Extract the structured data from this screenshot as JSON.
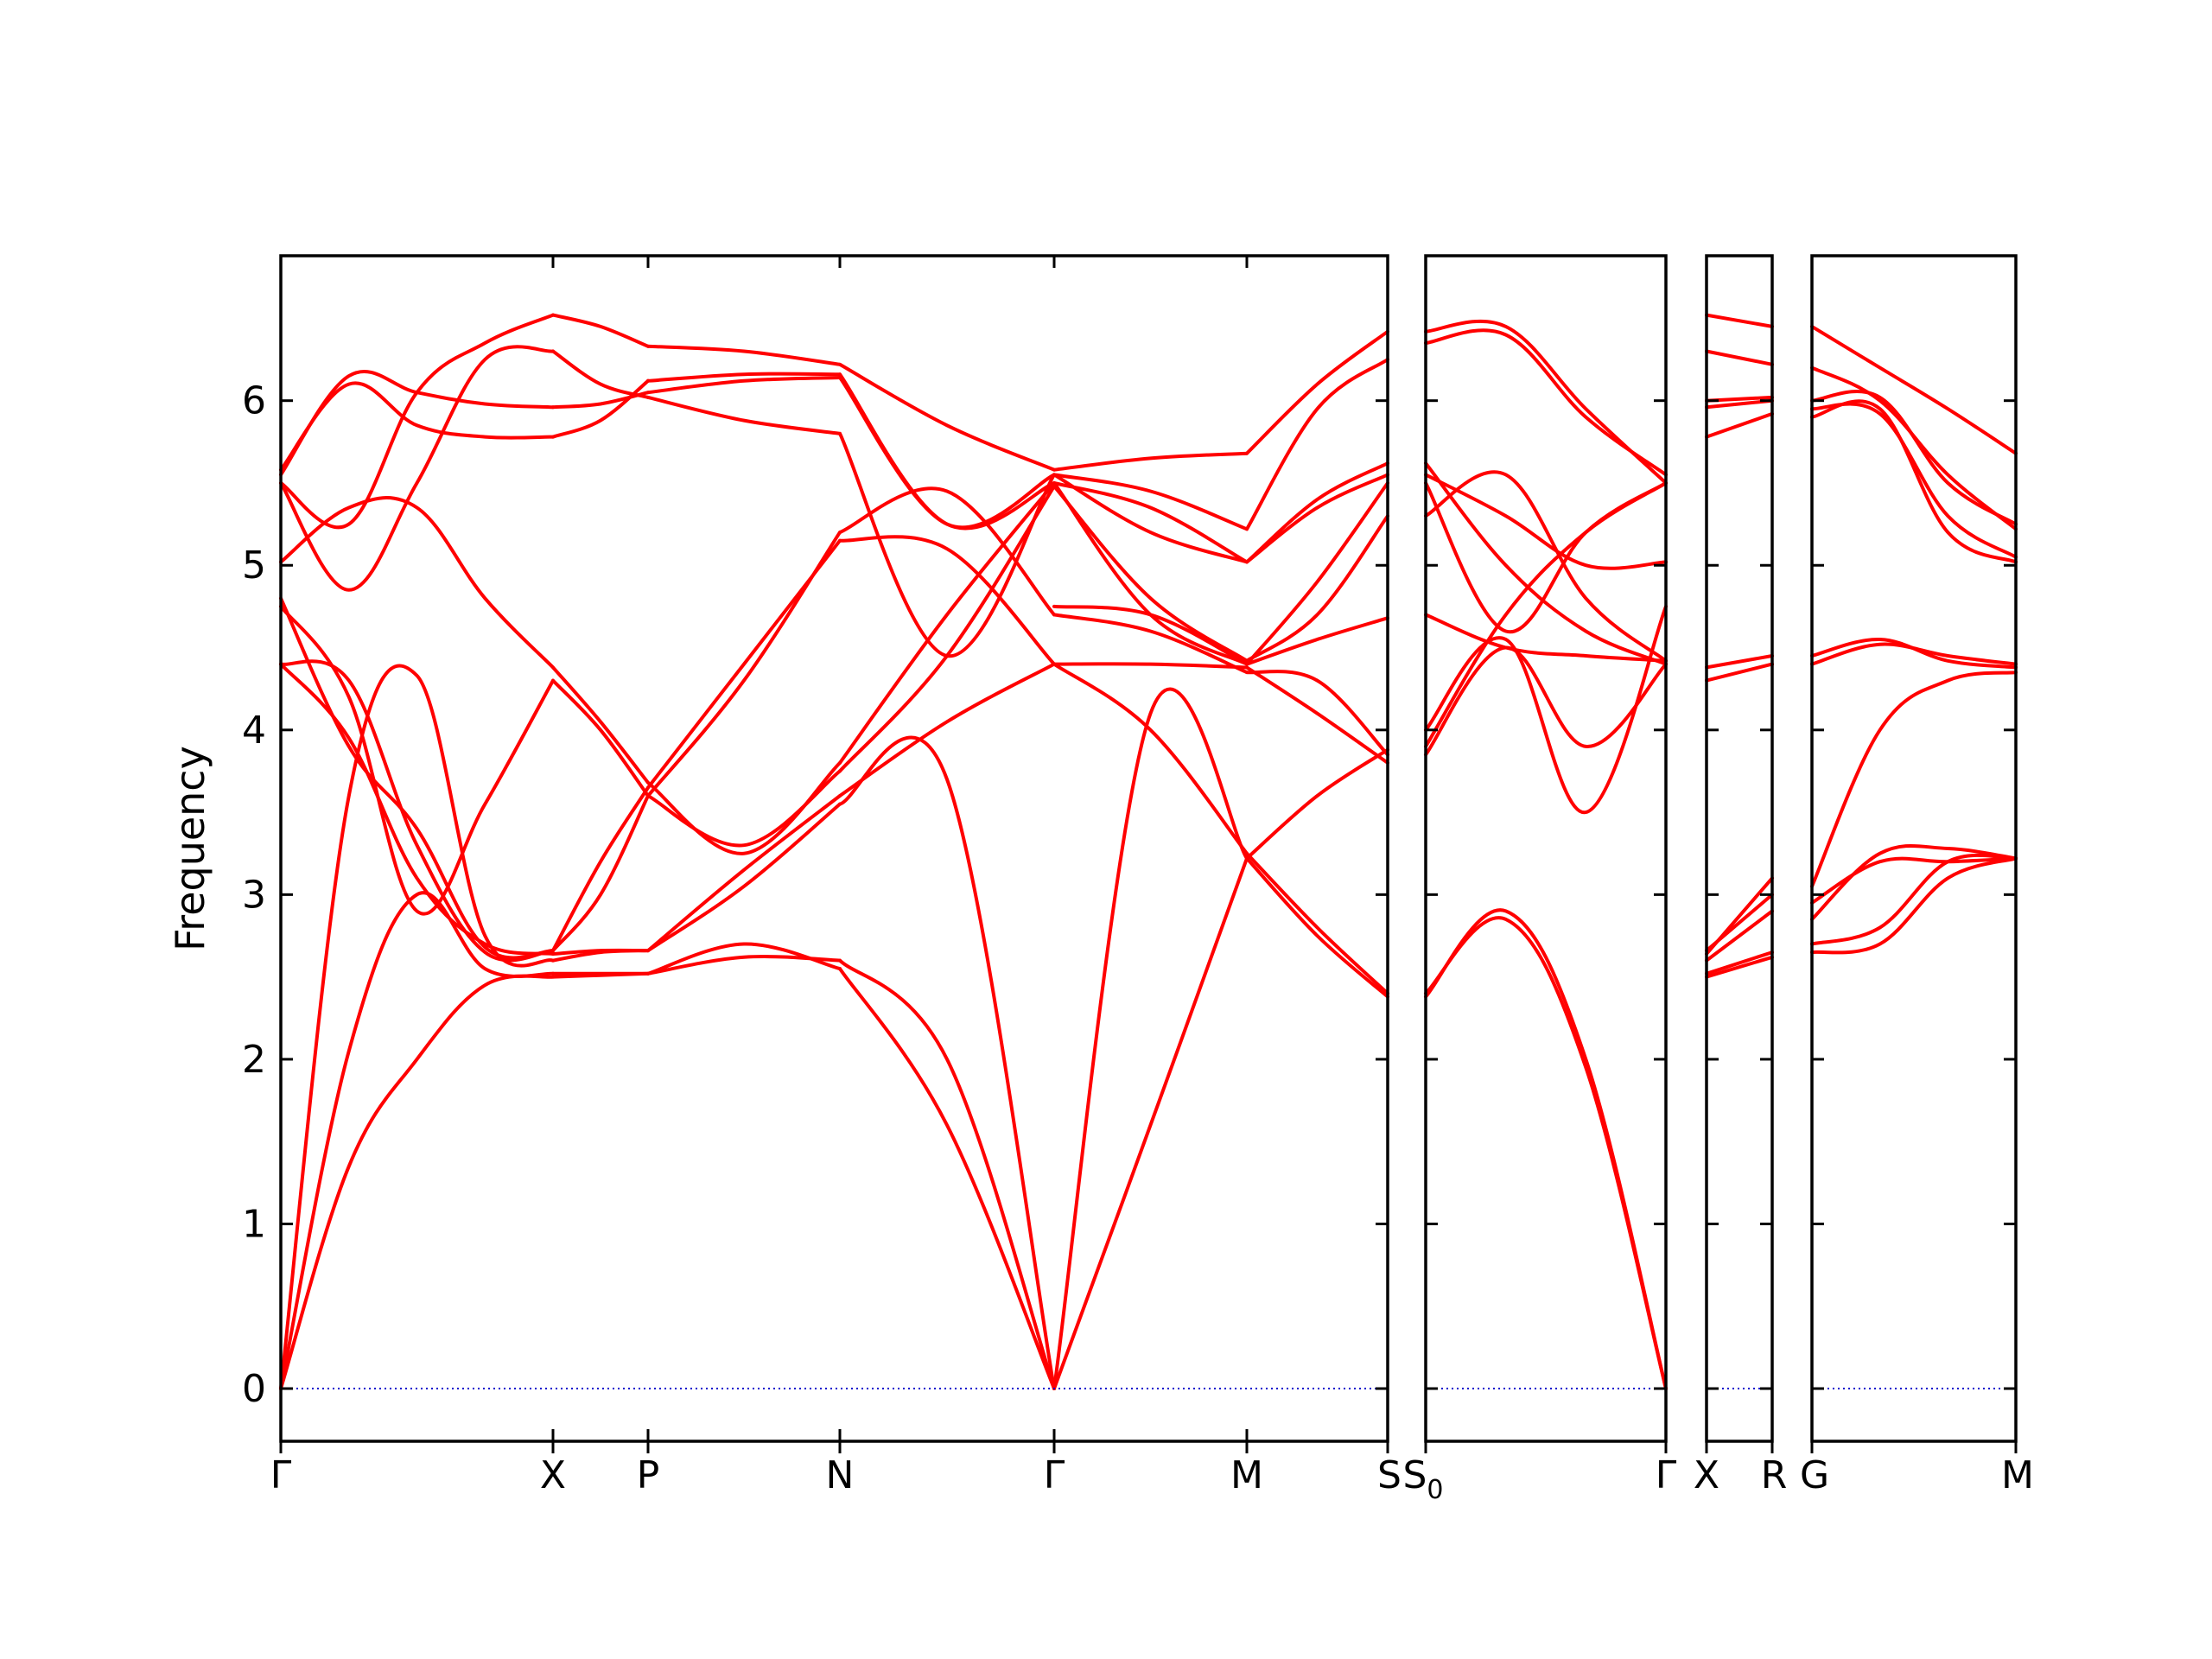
{
  "chart_data": {
    "type": "line",
    "ylabel": "Frequency",
    "ylim": [
      -0.32,
      6.88
    ],
    "yticks": [
      0,
      1,
      2,
      3,
      4,
      5,
      6
    ],
    "colors": {
      "bands": "#ff0000",
      "zero_line": "#0000cc"
    },
    "panels": [
      {
        "id": "p1",
        "segments": [
          {
            "labels": [
              "Γ",
              "X"
            ],
            "bands": [
              [
                0.0,
                1.35,
                2.0,
                2.45,
                2.5
              ],
              [
                0.0,
                2.05,
                3.0,
                2.55,
                2.52
              ],
              [
                0.0,
                3.6,
                4.33,
                2.75,
                2.6
              ],
              [
                4.4,
                3.95,
                3.1,
                2.7,
                2.64
              ],
              [
                4.4,
                4.3,
                3.3,
                2.65,
                2.66
              ],
              [
                4.8,
                3.9,
                3.4,
                2.68,
                2.66
              ],
              [
                4.75,
                4.2,
                2.9,
                3.55,
                4.3
              ],
              [
                5.02,
                5.35,
                5.35,
                4.8,
                4.38
              ],
              [
                5.5,
                4.85,
                5.5,
                6.25,
                6.3
              ],
              [
                5.55,
                6.15,
                6.05,
                5.98,
                5.96
              ],
              [
                5.5,
                5.25,
                6.05,
                6.35,
                6.52
              ],
              [
                5.58,
                6.1,
                5.85,
                5.78,
                5.78
              ]
            ]
          },
          {
            "labels": [
              "X",
              "P"
            ],
            "bands": [
              [
                2.5,
                2.51,
                2.52
              ],
              [
                2.52,
                2.52,
                2.52
              ],
              [
                2.6,
                2.65,
                2.66
              ],
              [
                2.64,
                2.66,
                2.66
              ],
              [
                2.66,
                3.2,
                3.65
              ],
              [
                2.66,
                3.0,
                3.6
              ],
              [
                4.3,
                4.0,
                3.6
              ],
              [
                4.38,
                4.05,
                3.68
              ],
              [
                6.3,
                6.1,
                6.02
              ],
              [
                5.96,
                5.98,
                6.05
              ],
              [
                6.52,
                6.45,
                6.33
              ],
              [
                5.78,
                5.88,
                6.12
              ]
            ]
          },
          {
            "labels": [
              "P",
              "N"
            ],
            "bands": [
              [
                2.52,
                2.7,
                2.55
              ],
              [
                2.52,
                2.62,
                2.6
              ],
              [
                2.66,
                3.05,
                3.55
              ],
              [
                2.66,
                3.15,
                3.6
              ],
              [
                3.65,
                4.4,
                5.15
              ],
              [
                3.6,
                4.3,
                5.2
              ],
              [
                3.6,
                3.3,
                3.75
              ],
              [
                3.68,
                3.25,
                3.8
              ],
              [
                6.02,
                5.88,
                5.8
              ],
              [
                6.05,
                6.12,
                6.14
              ],
              [
                6.33,
                6.3,
                6.22
              ],
              [
                6.12,
                6.16,
                6.16
              ]
            ]
          },
          {
            "labels": [
              "N",
              "Γ"
            ],
            "bands": [
              [
                2.55,
                1.6,
                0.0
              ],
              [
                2.6,
                2.0,
                0.0
              ],
              [
                3.55,
                3.7,
                0.0
              ],
              [
                3.6,
                4.05,
                4.4
              ],
              [
                5.15,
                5.1,
                4.4
              ],
              [
                5.2,
                5.45,
                4.7
              ],
              [
                3.75,
                4.45,
                5.48
              ],
              [
                3.8,
                4.7,
                5.5
              ],
              [
                5.8,
                4.45,
                5.55
              ],
              [
                6.14,
                5.25,
                5.55
              ],
              [
                6.22,
                5.85,
                5.58
              ],
              [
                6.16,
                5.25,
                5.5
              ]
            ]
          },
          {
            "labels": [
              "Γ",
              "M"
            ],
            "bands": [
              [
                0.0,
                1.6,
                3.22
              ],
              [
                0.0,
                4.1,
                3.22
              ],
              [
                4.4,
                4.0,
                3.25
              ],
              [
                4.4,
                4.4,
                4.38
              ],
              [
                4.7,
                4.6,
                4.35
              ],
              [
                4.75,
                4.7,
                4.4
              ],
              [
                5.48,
                4.8,
                4.42
              ],
              [
                5.5,
                4.7,
                4.4
              ],
              [
                5.55,
                5.2,
                5.02
              ],
              [
                5.55,
                5.45,
                5.22
              ],
              [
                5.58,
                5.65,
                5.68
              ],
              [
                5.5,
                5.35,
                5.02
              ]
            ]
          },
          {
            "labels": [
              "M",
              "S"
            ],
            "bands": [
              [
                3.22,
                2.75,
                2.38
              ],
              [
                3.22,
                3.6,
                3.88
              ],
              [
                3.25,
                2.8,
                2.4
              ],
              [
                4.38,
                4.1,
                3.8
              ],
              [
                4.35,
                4.3,
                3.85
              ],
              [
                4.4,
                4.55,
                4.68
              ],
              [
                4.42,
                4.7,
                5.3
              ],
              [
                4.4,
                4.9,
                5.5
              ],
              [
                5.02,
                5.4,
                5.62
              ],
              [
                5.22,
                5.95,
                6.25
              ],
              [
                5.68,
                6.1,
                6.42
              ],
              [
                5.02,
                5.35,
                5.55
              ]
            ]
          }
        ]
      },
      {
        "id": "p2",
        "segments": [
          {
            "labels": [
              "S0",
              "Γ"
            ],
            "bands": [
              [
                2.38,
                2.9,
                2.0,
                0.0
              ],
              [
                2.4,
                2.85,
                1.95,
                0.0
              ],
              [
                3.85,
                4.5,
                3.9,
                4.4
              ],
              [
                3.9,
                4.7,
                5.2,
                5.5
              ],
              [
                4.0,
                4.55,
                3.5,
                4.75
              ],
              [
                4.7,
                4.5,
                4.45,
                4.42
              ],
              [
                5.3,
                5.55,
                4.8,
                4.42
              ],
              [
                5.5,
                4.6,
                5.2,
                5.5
              ],
              [
                5.62,
                5.0,
                4.6,
                4.4
              ],
              [
                6.35,
                6.4,
                5.9,
                5.55
              ],
              [
                6.42,
                6.45,
                5.95,
                5.5
              ],
              [
                5.55,
                5.3,
                5.0,
                5.02
              ]
            ]
          }
        ]
      },
      {
        "id": "p3",
        "segments": [
          {
            "labels": [
              "X",
              "R"
            ],
            "bands": [
              [
                2.5,
                2.62
              ],
              [
                2.52,
                2.65
              ],
              [
                2.6,
                2.9
              ],
              [
                2.64,
                3.1
              ],
              [
                2.66,
                3.0
              ],
              [
                4.3,
                4.4
              ],
              [
                4.38,
                4.45
              ],
              [
                5.96,
                6.0
              ],
              [
                5.78,
                5.92
              ],
              [
                6.3,
                6.22
              ],
              [
                6.52,
                6.45
              ],
              [
                6.0,
                6.02
              ]
            ]
          }
        ]
      },
      {
        "id": "p4",
        "segments": [
          {
            "labels": [
              "G",
              "M"
            ],
            "bands": [
              [
                2.65,
                2.7,
                3.1,
                3.22
              ],
              [
                2.7,
                2.8,
                3.2,
                3.22
              ],
              [
                2.85,
                3.25,
                3.28,
                3.22
              ],
              [
                2.95,
                3.2,
                3.2,
                3.22
              ],
              [
                3.05,
                4.0,
                4.3,
                4.35
              ],
              [
                4.4,
                4.52,
                4.45,
                4.4
              ],
              [
                4.45,
                4.55,
                4.42,
                4.38
              ],
              [
                5.9,
                5.95,
                5.2,
                5.02
              ],
              [
                5.95,
                5.92,
                5.3,
                5.05
              ],
              [
                6.0,
                6.02,
                5.5,
                5.25
              ],
              [
                6.2,
                6.0,
                5.55,
                5.22
              ],
              [
                6.45,
                6.2,
                5.95,
                5.68
              ]
            ]
          }
        ]
      }
    ]
  },
  "x_labels": {
    "gamma1": "Γ",
    "x1": "X",
    "p": "P",
    "n": "N",
    "gamma2": "Γ",
    "m1": "M",
    "s": "S",
    "s0": "S",
    "s0_sub": "0",
    "gamma3": "Γ",
    "x2": "X",
    "r": "R",
    "g": "G",
    "m2": "M"
  }
}
